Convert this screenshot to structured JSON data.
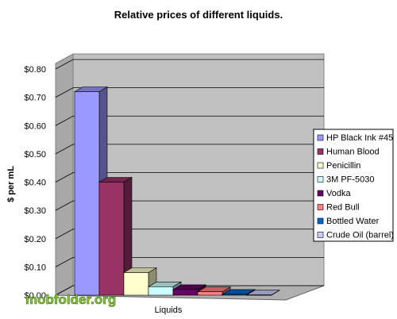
{
  "chart_data": {
    "type": "bar",
    "title": "Relative prices of different liquids.",
    "xlabel": "Liquids",
    "ylabel": "$ per mL",
    "categories": [
      "HP Black Ink #45",
      "Human Blood",
      "Penicillin",
      "3M PF-5030",
      "Vodka",
      "Red Bull",
      "Bottled Water",
      "Crude Oil (barrel)"
    ],
    "values": [
      0.72,
      0.4,
      0.08,
      0.03,
      0.02,
      0.012,
      0.003,
      0.001
    ],
    "ylim": [
      0,
      0.8
    ],
    "yticks": [
      "$0.00",
      "$0.10",
      "$0.20",
      "$0.30",
      "$0.40",
      "$0.50",
      "$0.60",
      "$0.70",
      "$0.80"
    ],
    "grid": true,
    "legend_position": "right",
    "colors": [
      "#9999ff",
      "#993366",
      "#ffffcc",
      "#ccffff",
      "#660066",
      "#ff8080",
      "#0066cc",
      "#ccccff"
    ]
  },
  "watermark": "mobfolder.org"
}
